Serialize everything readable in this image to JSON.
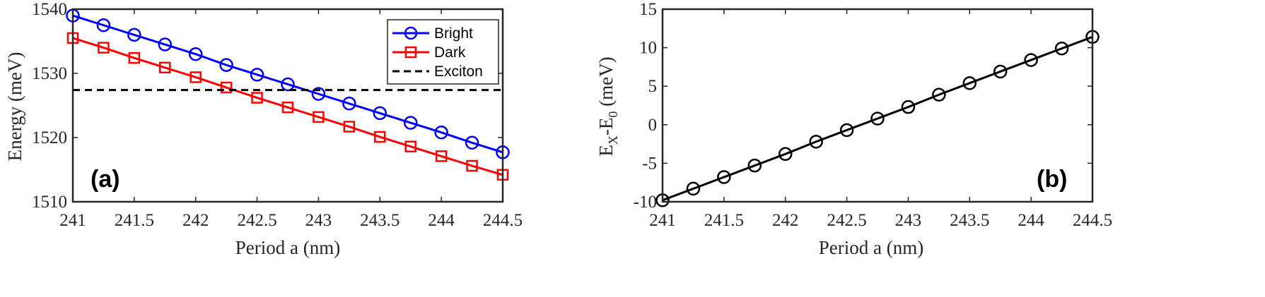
{
  "chart_data": [
    {
      "type": "line",
      "panel_label": "(a)",
      "xlabel": "Period a (nm)",
      "ylabel": "Energy (meV)",
      "xlim": [
        241,
        244.5
      ],
      "ylim": [
        1510,
        1540
      ],
      "xticks": [
        241,
        241.5,
        242,
        242.5,
        243,
        243.5,
        244,
        244.5
      ],
      "xtick_labels": [
        "241",
        "241.5",
        "242",
        "242.5",
        "243",
        "243.5",
        "244",
        "244.5"
      ],
      "yticks": [
        1510,
        1520,
        1530,
        1540
      ],
      "ytick_labels": [
        "1510",
        "1520",
        "1530",
        "1540"
      ],
      "grid": false,
      "legend_position": "top-right",
      "x": [
        241,
        241.25,
        241.5,
        241.75,
        242,
        242.25,
        242.5,
        242.75,
        243,
        243.25,
        243.5,
        243.75,
        244,
        244.25,
        244.5
      ],
      "series": [
        {
          "name": "Bright",
          "color": "#0000ff",
          "marker": "circle",
          "values": [
            1539.0,
            1537.5,
            1536.0,
            1534.5,
            1533.0,
            1531.3,
            1529.8,
            1528.3,
            1526.8,
            1525.3,
            1523.8,
            1522.3,
            1520.8,
            1519.2,
            1517.7
          ]
        },
        {
          "name": "Dark",
          "color": "#ff0000",
          "marker": "square",
          "values": [
            1535.5,
            1534.0,
            1532.4,
            1530.9,
            1529.4,
            1527.8,
            1526.2,
            1524.7,
            1523.2,
            1521.7,
            1520.1,
            1518.6,
            1517.1,
            1515.6,
            1514.2
          ]
        },
        {
          "name": "Exciton",
          "color": "#000000",
          "style": "dashed",
          "y": 1527.4
        }
      ]
    },
    {
      "type": "line",
      "panel_label": "(b)",
      "xlabel": "Period a (nm)",
      "ylabel": "E_X-E_0 (meV)",
      "ylabel_parts": {
        "e1": "E",
        "sub1": "X",
        "mid": "-E",
        "sub2": "0",
        "unit": " (meV)"
      },
      "xlim": [
        241,
        244.5
      ],
      "ylim": [
        -10,
        15
      ],
      "xticks": [
        241,
        241.5,
        242,
        242.5,
        243,
        243.5,
        244,
        244.5
      ],
      "xtick_labels": [
        "241",
        "241.5",
        "242",
        "242.5",
        "243",
        "243.5",
        "244",
        "244.5"
      ],
      "yticks": [
        -10,
        -5,
        0,
        5,
        10,
        15
      ],
      "ytick_labels": [
        "-10",
        "-5",
        "0",
        "5",
        "10",
        "15"
      ],
      "grid": false,
      "x": [
        241,
        241.25,
        241.5,
        241.75,
        242,
        242.25,
        242.5,
        242.75,
        243,
        243.25,
        243.5,
        243.75,
        244,
        244.25,
        244.5
      ],
      "series": [
        {
          "color": "#000000",
          "marker": "circle",
          "values": [
            -9.8,
            -8.3,
            -6.8,
            -5.3,
            -3.8,
            -2.2,
            -0.7,
            0.8,
            2.3,
            3.9,
            5.4,
            6.9,
            8.4,
            9.9,
            11.4
          ]
        }
      ]
    }
  ]
}
